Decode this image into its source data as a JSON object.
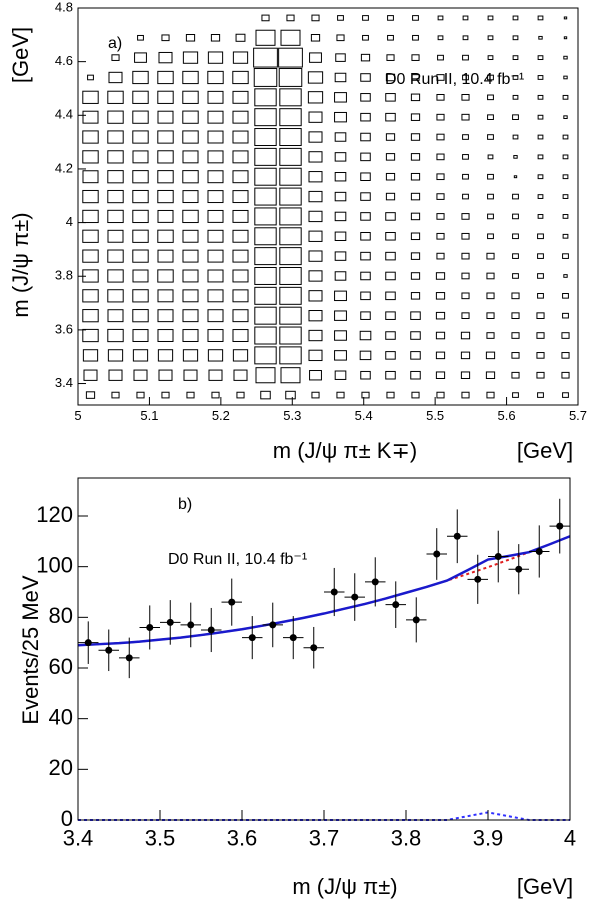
{
  "chart_data": [
    {
      "type": "box2d",
      "label": "a)",
      "annotation": "D0 Run II, 10.4 fb⁻¹",
      "xlabel": "m (J/ψ π± K∓)",
      "xunit": "[GeV]",
      "ylabel": "m (J/ψ π±)",
      "yunit": "[GeV]",
      "xlim": [
        5,
        5.7
      ],
      "ylim": [
        3.32,
        4.8
      ],
      "xticks": [
        5,
        5.1,
        5.2,
        5.3,
        5.4,
        5.5,
        5.6,
        5.7
      ],
      "yticks": [
        3.4,
        3.6,
        3.8,
        4,
        4.2,
        4.4,
        4.6,
        4.8
      ],
      "color": "#000000",
      "z": [
        [
          0,
          0,
          0,
          0,
          0,
          0,
          0,
          9,
          9,
          9,
          6,
          6,
          6,
          6,
          4,
          4,
          4,
          4,
          4,
          1
        ],
        [
          0,
          0,
          6,
          9,
          12,
          12,
          14,
          64,
          64,
          12,
          9,
          6,
          6,
          6,
          4,
          4,
          4,
          4,
          2,
          1
        ],
        [
          0,
          9,
          25,
          30,
          36,
          36,
          36,
          100,
          100,
          25,
          16,
          12,
          9,
          9,
          6,
          6,
          4,
          4,
          4,
          2
        ],
        [
          6,
          30,
          42,
          42,
          42,
          42,
          42,
          90,
          90,
          36,
          20,
          16,
          12,
          9,
          9,
          6,
          6,
          4,
          4,
          2
        ],
        [
          42,
          42,
          42,
          42,
          42,
          40,
          40,
          81,
          81,
          36,
          25,
          16,
          16,
          12,
          9,
          9,
          6,
          4,
          4,
          4
        ],
        [
          40,
          42,
          42,
          40,
          42,
          40,
          40,
          81,
          81,
          30,
          25,
          16,
          16,
          12,
          9,
          9,
          6,
          6,
          4,
          2
        ],
        [
          42,
          42,
          42,
          42,
          42,
          40,
          40,
          81,
          81,
          30,
          20,
          16,
          12,
          12,
          9,
          6,
          6,
          4,
          4,
          4
        ],
        [
          42,
          42,
          40,
          42,
          40,
          40,
          40,
          81,
          81,
          30,
          20,
          16,
          12,
          12,
          9,
          6,
          4,
          2,
          4,
          4
        ],
        [
          40,
          42,
          42,
          42,
          42,
          40,
          40,
          81,
          81,
          30,
          20,
          16,
          12,
          12,
          9,
          6,
          6,
          1,
          4,
          4
        ],
        [
          42,
          42,
          42,
          42,
          40,
          40,
          40,
          81,
          81,
          30,
          20,
          16,
          12,
          12,
          9,
          6,
          6,
          6,
          4,
          4
        ],
        [
          42,
          42,
          42,
          40,
          42,
          40,
          40,
          81,
          81,
          30,
          20,
          16,
          16,
          12,
          9,
          9,
          6,
          6,
          4,
          4
        ],
        [
          42,
          40,
          42,
          42,
          40,
          40,
          40,
          81,
          81,
          30,
          20,
          16,
          16,
          12,
          9,
          9,
          6,
          6,
          6,
          4
        ],
        [
          42,
          42,
          42,
          40,
          40,
          40,
          40,
          81,
          81,
          30,
          20,
          16,
          16,
          12,
          9,
          9,
          9,
          6,
          6,
          6
        ],
        [
          42,
          42,
          40,
          42,
          40,
          40,
          40,
          81,
          81,
          30,
          20,
          16,
          16,
          12,
          12,
          9,
          9,
          6,
          6,
          2
        ],
        [
          42,
          42,
          42,
          40,
          40,
          40,
          40,
          81,
          81,
          30,
          25,
          16,
          16,
          12,
          12,
          9,
          9,
          9,
          6,
          6
        ],
        [
          42,
          40,
          42,
          40,
          40,
          40,
          40,
          81,
          81,
          30,
          25,
          16,
          16,
          16,
          12,
          9,
          9,
          9,
          9,
          6
        ],
        [
          42,
          42,
          40,
          40,
          40,
          40,
          40,
          81,
          81,
          30,
          25,
          20,
          16,
          16,
          12,
          12,
          9,
          9,
          9,
          9
        ],
        [
          36,
          36,
          36,
          36,
          36,
          36,
          36,
          81,
          81,
          30,
          25,
          20,
          16,
          16,
          12,
          12,
          12,
          9,
          9,
          9
        ],
        [
          30,
          30,
          30,
          30,
          30,
          30,
          30,
          64,
          64,
          25,
          20,
          16,
          16,
          16,
          12,
          12,
          12,
          9,
          9,
          9
        ],
        [
          12,
          9,
          9,
          9,
          9,
          9,
          9,
          16,
          16,
          9,
          9,
          9,
          9,
          9,
          9,
          9,
          9,
          6,
          6,
          6
        ]
      ]
    },
    {
      "type": "fit",
      "label": "b)",
      "annotation": "D0 Run II, 10.4 fb⁻¹",
      "xlabel": "m (J/ψ π±)",
      "xunit": "[GeV]",
      "ylabel": "Events/25 MeV",
      "xlim": [
        3.4,
        4
      ],
      "ylim": [
        0,
        135
      ],
      "xticks": [
        3.4,
        3.5,
        3.6,
        3.7,
        3.8,
        3.9,
        4
      ],
      "yticks": [
        0,
        20,
        40,
        60,
        80,
        100,
        120
      ],
      "points": {
        "color": "#000000",
        "xerr": 0.0125,
        "x": [
          3.4125,
          3.4375,
          3.4625,
          3.4875,
          3.5125,
          3.5375,
          3.5625,
          3.5875,
          3.6125,
          3.6375,
          3.6625,
          3.6875,
          3.7125,
          3.7375,
          3.7625,
          3.7875,
          3.8125,
          3.8375,
          3.8625,
          3.8875,
          3.9125,
          3.9375,
          3.9625,
          3.9875
        ],
        "values": [
          70,
          67,
          64,
          76,
          78,
          77,
          75,
          86,
          72,
          77,
          72,
          68,
          90,
          88,
          94,
          85,
          79,
          105,
          112,
          95,
          104,
          99,
          106,
          116
        ],
        "errors": [
          8.4,
          8.2,
          8,
          8.7,
          8.8,
          8.8,
          8.7,
          9.3,
          8.5,
          8.8,
          8.5,
          8.2,
          9.5,
          9.4,
          9.7,
          9.2,
          8.9,
          10.2,
          10.6,
          9.7,
          10.2,
          9.9,
          10.3,
          10.8
        ]
      },
      "x": [
        3.4,
        3.425,
        3.45,
        3.475,
        3.5,
        3.525,
        3.55,
        3.575,
        3.6,
        3.625,
        3.65,
        3.675,
        3.7,
        3.725,
        3.75,
        3.775,
        3.8,
        3.825,
        3.85,
        3.875,
        3.9,
        3.925,
        3.95,
        3.975,
        4
      ],
      "series": [
        {
          "color": "#e02020",
          "style": "dotted",
          "values": [
            69,
            69.4,
            69.8,
            70.4,
            71.2,
            72,
            73,
            74.1,
            75.3,
            76.7,
            78.2,
            79.8,
            81.5,
            83.4,
            85.3,
            87.4,
            89.7,
            92,
            94.5,
            97.1,
            99.8,
            102.7,
            105.7,
            108.8,
            112
          ]
        },
        {
          "color": "#1a1acc",
          "style": "solid",
          "values": [
            69,
            69.4,
            69.8,
            70.4,
            71.2,
            72,
            73,
            74.1,
            75.3,
            76.7,
            78.2,
            79.8,
            81.5,
            83.4,
            85.3,
            87.4,
            89.7,
            92,
            94.5,
            98.6,
            102.8,
            104.2,
            105.7,
            108.8,
            112
          ]
        },
        {
          "color": "#3030ff",
          "style": "dotted",
          "values": [
            0,
            0,
            0,
            0,
            0,
            0,
            0,
            0,
            0,
            0,
            0,
            0,
            0,
            0,
            0,
            0,
            0,
            0,
            0,
            1.5,
            3,
            1.5,
            0,
            0,
            0
          ]
        }
      ]
    }
  ]
}
